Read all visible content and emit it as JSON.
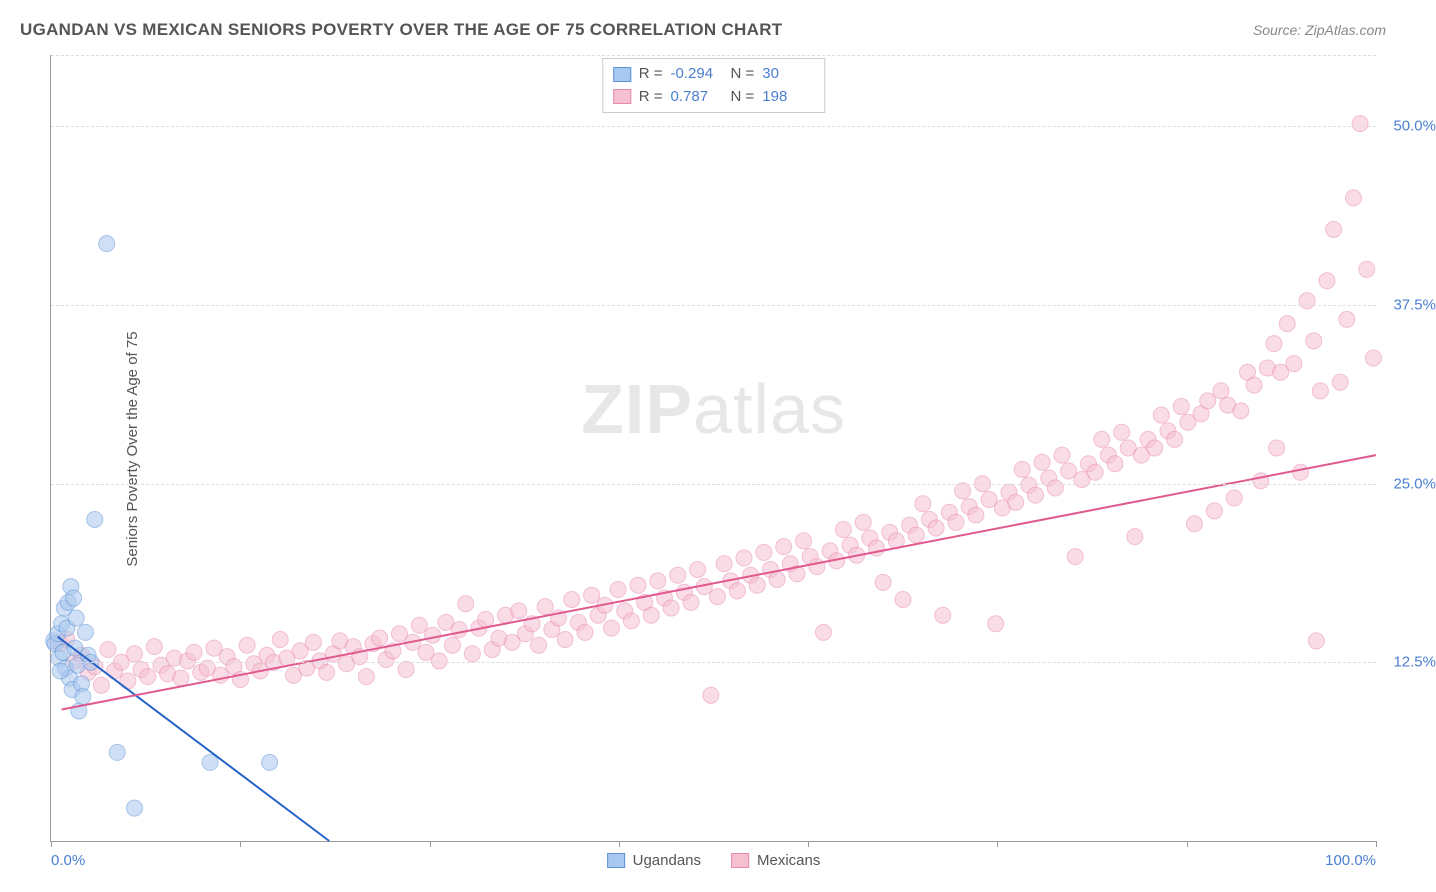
{
  "title": "UGANDAN VS MEXICAN SENIORS POVERTY OVER THE AGE OF 75 CORRELATION CHART",
  "source_label": "Source: ZipAtlas.com",
  "ylabel": "Seniors Poverty Over the Age of 75",
  "watermark_a": "ZIP",
  "watermark_b": "atlas",
  "chart": {
    "type": "scatter",
    "xlim": [
      0,
      100
    ],
    "ylim": [
      0,
      55
    ],
    "xtick_positions": [
      0,
      14.3,
      28.6,
      42.9,
      57.1,
      71.4,
      85.7,
      100
    ],
    "xtick_labels_shown": {
      "0": "0.0%",
      "100": "100.0%"
    },
    "ytick_positions": [
      12.5,
      25.0,
      37.5,
      50.0
    ],
    "ytick_labels": [
      "12.5%",
      "25.0%",
      "37.5%",
      "50.0%"
    ],
    "grid_color": "#dddddd",
    "background_color": "#ffffff",
    "axis_color": "#999999",
    "marker_radius": 8,
    "marker_opacity": 0.55,
    "line_width": 2,
    "series": [
      {
        "name": "Ugandans",
        "color_fill": "#a9c8f0",
        "color_stroke": "#5d92d6",
        "line_color": "#2663c7",
        "r_value": "-0.294",
        "n_value": "30",
        "regression": {
          "x1": 0.5,
          "y1": 14.3,
          "x2": 21,
          "y2": 0
        },
        "points": [
          [
            0.2,
            14.0
          ],
          [
            0.3,
            13.8
          ],
          [
            0.5,
            14.5
          ],
          [
            0.6,
            12.8
          ],
          [
            0.8,
            15.2
          ],
          [
            0.9,
            13.2
          ],
          [
            1.0,
            16.3
          ],
          [
            1.1,
            12.1
          ],
          [
            1.2,
            14.9
          ],
          [
            1.4,
            11.4
          ],
          [
            1.5,
            17.8
          ],
          [
            1.6,
            10.6
          ],
          [
            1.8,
            13.5
          ],
          [
            1.9,
            15.6
          ],
          [
            2.0,
            12.3
          ],
          [
            2.1,
            9.1
          ],
          [
            2.3,
            11.0
          ],
          [
            2.4,
            10.1
          ],
          [
            2.6,
            14.6
          ],
          [
            2.8,
            13.0
          ],
          [
            3.0,
            12.5
          ],
          [
            3.3,
            22.5
          ],
          [
            4.2,
            41.8
          ],
          [
            5.0,
            6.2
          ],
          [
            6.3,
            2.3
          ],
          [
            12.0,
            5.5
          ],
          [
            16.5,
            5.5
          ],
          [
            1.3,
            16.7
          ],
          [
            0.7,
            11.9
          ],
          [
            1.7,
            17.0
          ]
        ]
      },
      {
        "name": "Mexicans",
        "color_fill": "#f5c1d1",
        "color_stroke": "#e988ad",
        "line_color": "#e05a8f",
        "r_value": "0.787",
        "n_value": "198",
        "regression": {
          "x1": 0.8,
          "y1": 9.2,
          "x2": 100,
          "y2": 27.0
        },
        "points": [
          [
            0.7,
            13.8
          ],
          [
            1.2,
            14.1
          ],
          [
            1.8,
            12.6
          ],
          [
            2.3,
            13.0
          ],
          [
            2.8,
            11.8
          ],
          [
            3.3,
            12.2
          ],
          [
            3.8,
            10.9
          ],
          [
            4.3,
            13.4
          ],
          [
            4.8,
            11.9
          ],
          [
            5.3,
            12.5
          ],
          [
            5.8,
            11.2
          ],
          [
            6.3,
            13.1
          ],
          [
            6.8,
            12.0
          ],
          [
            7.3,
            11.5
          ],
          [
            7.8,
            13.6
          ],
          [
            8.3,
            12.3
          ],
          [
            8.8,
            11.7
          ],
          [
            9.3,
            12.8
          ],
          [
            9.8,
            11.4
          ],
          [
            10.3,
            12.6
          ],
          [
            10.8,
            13.2
          ],
          [
            11.3,
            11.8
          ],
          [
            11.8,
            12.1
          ],
          [
            12.3,
            13.5
          ],
          [
            12.8,
            11.6
          ],
          [
            13.3,
            12.9
          ],
          [
            13.8,
            12.2
          ],
          [
            14.3,
            11.3
          ],
          [
            14.8,
            13.7
          ],
          [
            15.3,
            12.4
          ],
          [
            15.8,
            11.9
          ],
          [
            16.3,
            13.0
          ],
          [
            16.8,
            12.5
          ],
          [
            17.3,
            14.1
          ],
          [
            17.8,
            12.8
          ],
          [
            18.3,
            11.6
          ],
          [
            18.8,
            13.3
          ],
          [
            19.3,
            12.1
          ],
          [
            19.8,
            13.9
          ],
          [
            20.3,
            12.6
          ],
          [
            20.8,
            11.8
          ],
          [
            21.3,
            13.1
          ],
          [
            21.8,
            14.0
          ],
          [
            22.3,
            12.4
          ],
          [
            22.8,
            13.6
          ],
          [
            23.3,
            12.9
          ],
          [
            23.8,
            11.5
          ],
          [
            24.3,
            13.8
          ],
          [
            24.8,
            14.2
          ],
          [
            25.3,
            12.7
          ],
          [
            25.8,
            13.3
          ],
          [
            26.3,
            14.5
          ],
          [
            26.8,
            12.0
          ],
          [
            27.3,
            13.9
          ],
          [
            27.8,
            15.1
          ],
          [
            28.3,
            13.2
          ],
          [
            28.8,
            14.4
          ],
          [
            29.3,
            12.6
          ],
          [
            29.8,
            15.3
          ],
          [
            30.3,
            13.7
          ],
          [
            30.8,
            14.8
          ],
          [
            31.3,
            16.6
          ],
          [
            31.8,
            13.1
          ],
          [
            32.3,
            14.9
          ],
          [
            32.8,
            15.5
          ],
          [
            33.3,
            13.4
          ],
          [
            33.8,
            14.2
          ],
          [
            34.3,
            15.8
          ],
          [
            34.8,
            13.9
          ],
          [
            35.3,
            16.1
          ],
          [
            35.8,
            14.5
          ],
          [
            36.3,
            15.2
          ],
          [
            36.8,
            13.7
          ],
          [
            37.3,
            16.4
          ],
          [
            37.8,
            14.8
          ],
          [
            38.3,
            15.6
          ],
          [
            38.8,
            14.1
          ],
          [
            39.3,
            16.9
          ],
          [
            39.8,
            15.3
          ],
          [
            40.3,
            14.6
          ],
          [
            40.8,
            17.2
          ],
          [
            41.3,
            15.8
          ],
          [
            41.8,
            16.5
          ],
          [
            42.3,
            14.9
          ],
          [
            42.8,
            17.6
          ],
          [
            43.3,
            16.1
          ],
          [
            43.8,
            15.4
          ],
          [
            44.3,
            17.9
          ],
          [
            44.8,
            16.7
          ],
          [
            45.3,
            15.8
          ],
          [
            45.8,
            18.2
          ],
          [
            46.3,
            17.0
          ],
          [
            46.8,
            16.3
          ],
          [
            47.3,
            18.6
          ],
          [
            47.8,
            17.4
          ],
          [
            48.3,
            16.7
          ],
          [
            48.8,
            19.0
          ],
          [
            49.3,
            17.8
          ],
          [
            49.8,
            10.2
          ],
          [
            50.3,
            17.1
          ],
          [
            50.8,
            19.4
          ],
          [
            51.3,
            18.2
          ],
          [
            51.8,
            17.5
          ],
          [
            52.3,
            19.8
          ],
          [
            52.8,
            18.6
          ],
          [
            53.3,
            17.9
          ],
          [
            53.8,
            20.2
          ],
          [
            54.3,
            19.0
          ],
          [
            54.8,
            18.3
          ],
          [
            55.3,
            20.6
          ],
          [
            55.8,
            19.4
          ],
          [
            56.3,
            18.7
          ],
          [
            56.8,
            21.0
          ],
          [
            57.3,
            19.9
          ],
          [
            57.8,
            19.2
          ],
          [
            58.3,
            14.6
          ],
          [
            58.8,
            20.3
          ],
          [
            59.3,
            19.6
          ],
          [
            59.8,
            21.8
          ],
          [
            60.3,
            20.7
          ],
          [
            60.8,
            20.0
          ],
          [
            61.3,
            22.3
          ],
          [
            61.8,
            21.2
          ],
          [
            62.3,
            20.5
          ],
          [
            62.8,
            18.1
          ],
          [
            63.3,
            21.6
          ],
          [
            63.8,
            21.0
          ],
          [
            64.3,
            16.9
          ],
          [
            64.8,
            22.1
          ],
          [
            65.3,
            21.4
          ],
          [
            65.8,
            23.6
          ],
          [
            66.3,
            22.5
          ],
          [
            66.8,
            21.9
          ],
          [
            67.3,
            15.8
          ],
          [
            67.8,
            23.0
          ],
          [
            68.3,
            22.3
          ],
          [
            68.8,
            24.5
          ],
          [
            69.3,
            23.4
          ],
          [
            69.8,
            22.8
          ],
          [
            70.3,
            25.0
          ],
          [
            70.8,
            23.9
          ],
          [
            71.3,
            15.2
          ],
          [
            71.8,
            23.3
          ],
          [
            72.3,
            24.4
          ],
          [
            72.8,
            23.7
          ],
          [
            73.3,
            26.0
          ],
          [
            73.8,
            24.9
          ],
          [
            74.3,
            24.2
          ],
          [
            74.8,
            26.5
          ],
          [
            75.3,
            25.4
          ],
          [
            75.8,
            24.7
          ],
          [
            76.3,
            27.0
          ],
          [
            76.8,
            25.9
          ],
          [
            77.3,
            19.9
          ],
          [
            77.8,
            25.3
          ],
          [
            78.3,
            26.4
          ],
          [
            78.8,
            25.8
          ],
          [
            79.3,
            28.1
          ],
          [
            79.8,
            27.0
          ],
          [
            80.3,
            26.4
          ],
          [
            80.8,
            28.6
          ],
          [
            81.3,
            27.5
          ],
          [
            81.8,
            21.3
          ],
          [
            82.3,
            27.0
          ],
          [
            82.8,
            28.1
          ],
          [
            83.3,
            27.5
          ],
          [
            83.8,
            29.8
          ],
          [
            84.3,
            28.7
          ],
          [
            84.8,
            28.1
          ],
          [
            85.3,
            30.4
          ],
          [
            85.8,
            29.3
          ],
          [
            86.3,
            22.2
          ],
          [
            86.8,
            29.9
          ],
          [
            87.3,
            30.8
          ],
          [
            87.8,
            23.1
          ],
          [
            88.3,
            31.5
          ],
          [
            88.8,
            30.5
          ],
          [
            89.3,
            24.0
          ],
          [
            89.8,
            30.1
          ],
          [
            90.3,
            32.8
          ],
          [
            90.8,
            31.9
          ],
          [
            91.3,
            25.2
          ],
          [
            91.8,
            33.1
          ],
          [
            92.3,
            34.8
          ],
          [
            92.8,
            32.8
          ],
          [
            93.3,
            36.2
          ],
          [
            93.8,
            33.4
          ],
          [
            94.3,
            25.8
          ],
          [
            94.8,
            37.8
          ],
          [
            95.3,
            35.0
          ],
          [
            95.8,
            31.5
          ],
          [
            96.3,
            39.2
          ],
          [
            96.8,
            42.8
          ],
          [
            97.3,
            32.1
          ],
          [
            97.8,
            36.5
          ],
          [
            98.3,
            45.0
          ],
          [
            98.8,
            50.2
          ],
          [
            99.3,
            40.0
          ],
          [
            99.8,
            33.8
          ],
          [
            95.5,
            14.0
          ],
          [
            92.5,
            27.5
          ]
        ]
      }
    ]
  },
  "legend": {
    "r_label": "R =",
    "n_label": "N ="
  },
  "bottom_legend": {
    "series1": "Ugandans",
    "series2": "Mexicans"
  }
}
